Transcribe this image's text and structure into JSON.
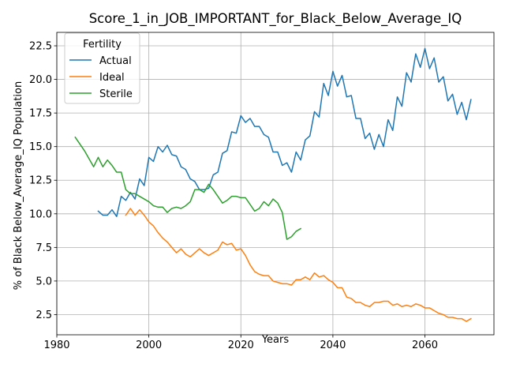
{
  "chart_data": {
    "type": "line",
    "title": "Score_1_in_JOB_IMPORTANT_for_Black_Below_Average_IQ",
    "xlabel": "Years",
    "ylabel": "% of Black Below_Average_IQ Population",
    "xlim": [
      1980,
      2075
    ],
    "ylim": [
      1,
      23.5
    ],
    "xticks": [
      1980,
      2000,
      2020,
      2040,
      2060
    ],
    "xtick_labels": [
      "1980",
      "2000",
      "2020",
      "2040",
      "2060"
    ],
    "yticks": [
      2.5,
      5.0,
      7.5,
      10.0,
      12.5,
      15.0,
      17.5,
      20.0,
      22.5
    ],
    "ytick_labels": [
      "2.5",
      "5.0",
      "7.5",
      "10.0",
      "12.5",
      "15.0",
      "17.5",
      "20.0",
      "22.5"
    ],
    "grid": true,
    "legend": {
      "title": "Fertility",
      "position": "top-left"
    },
    "series": [
      {
        "name": "Actual",
        "color": "#1f77b4",
        "x": [
          1989,
          1990,
          1991,
          1992,
          1993,
          1994,
          1995,
          1996,
          1997,
          1998,
          1999,
          2000,
          2001,
          2002,
          2003,
          2004,
          2005,
          2006,
          2007,
          2008,
          2009,
          2010,
          2011,
          2012,
          2013,
          2014,
          2015,
          2016,
          2017,
          2018,
          2019,
          2020,
          2021,
          2022,
          2023,
          2024,
          2025,
          2026,
          2027,
          2028,
          2029,
          2030,
          2031,
          2032,
          2033,
          2034,
          2035,
          2036,
          2037,
          2038,
          2039,
          2040,
          2041,
          2042,
          2043,
          2044,
          2045,
          2046,
          2047,
          2048,
          2049,
          2050,
          2051,
          2052,
          2053,
          2054,
          2055,
          2056,
          2057,
          2058,
          2059,
          2060,
          2061,
          2062,
          2063,
          2064,
          2065,
          2066,
          2067,
          2068,
          2069,
          2070
        ],
        "y": [
          10.2,
          9.9,
          9.9,
          10.3,
          9.8,
          11.3,
          11.0,
          11.6,
          11.1,
          12.6,
          12.1,
          14.2,
          13.9,
          15.0,
          14.6,
          15.1,
          14.4,
          14.3,
          13.5,
          13.3,
          12.6,
          12.4,
          11.8,
          11.8,
          11.9,
          12.9,
          13.1,
          14.5,
          14.7,
          16.1,
          16.0,
          17.3,
          16.8,
          17.1,
          16.5,
          16.5,
          15.9,
          15.7,
          14.6,
          14.6,
          13.6,
          13.8,
          13.1,
          14.6,
          14.0,
          15.5,
          15.8,
          17.6,
          17.2,
          19.7,
          18.8,
          20.6,
          19.5,
          20.3,
          18.7,
          18.8,
          17.1,
          17.1,
          15.6,
          16.0,
          14.8,
          15.9,
          15.0,
          17.0,
          16.2,
          18.7,
          18.0,
          20.5,
          19.8,
          21.9,
          20.9,
          22.3,
          20.8,
          21.6,
          19.8,
          20.2,
          18.4,
          18.9,
          17.4,
          18.3,
          17.0,
          18.5
        ]
      },
      {
        "name": "Ideal",
        "color": "#ff7f0e",
        "x": [
          1995,
          1996,
          1997,
          1998,
          1999,
          2000,
          2001,
          2002,
          2003,
          2004,
          2005,
          2006,
          2007,
          2008,
          2009,
          2010,
          2011,
          2012,
          2013,
          2014,
          2015,
          2016,
          2017,
          2018,
          2019,
          2020,
          2021,
          2022,
          2023,
          2024,
          2025,
          2026,
          2027,
          2028,
          2029,
          2030,
          2031,
          2032,
          2033,
          2034,
          2035,
          2036,
          2037,
          2038,
          2039,
          2040,
          2041,
          2042,
          2043,
          2044,
          2045,
          2046,
          2047,
          2048,
          2049,
          2050,
          2051,
          2052,
          2053,
          2054,
          2055,
          2056,
          2057,
          2058,
          2059,
          2060,
          2061,
          2062,
          2063,
          2064,
          2065,
          2066,
          2067,
          2068,
          2069,
          2070
        ],
        "y": [
          9.9,
          10.4,
          9.9,
          10.3,
          9.9,
          9.4,
          9.1,
          8.6,
          8.2,
          7.9,
          7.5,
          7.1,
          7.4,
          7.0,
          6.8,
          7.1,
          7.4,
          7.1,
          6.9,
          7.1,
          7.3,
          7.9,
          7.7,
          7.8,
          7.3,
          7.4,
          6.9,
          6.2,
          5.7,
          5.5,
          5.4,
          5.4,
          5.0,
          4.9,
          4.8,
          4.8,
          4.7,
          5.1,
          5.1,
          5.3,
          5.1,
          5.6,
          5.3,
          5.4,
          5.1,
          4.9,
          4.5,
          4.5,
          3.8,
          3.7,
          3.4,
          3.4,
          3.2,
          3.1,
          3.4,
          3.4,
          3.5,
          3.5,
          3.2,
          3.3,
          3.1,
          3.2,
          3.1,
          3.3,
          3.2,
          3.0,
          3.0,
          2.8,
          2.6,
          2.5,
          2.3,
          2.3,
          2.2,
          2.2,
          2.0,
          2.2
        ]
      },
      {
        "name": "Sterile",
        "color": "#2ca02c",
        "x": [
          1984,
          1985,
          1986,
          1987,
          1988,
          1989,
          1990,
          1991,
          1992,
          1993,
          1994,
          1995,
          1996,
          1997,
          1998,
          1999,
          2000,
          2001,
          2002,
          2003,
          2004,
          2005,
          2006,
          2007,
          2008,
          2009,
          2010,
          2011,
          2012,
          2013,
          2014,
          2015,
          2016,
          2017,
          2018,
          2019,
          2020,
          2021,
          2022,
          2023,
          2024,
          2025,
          2026,
          2027,
          2028,
          2029,
          2030,
          2031,
          2032,
          2033
        ],
        "y": [
          15.7,
          15.2,
          14.7,
          14.1,
          13.5,
          14.2,
          13.5,
          14.0,
          13.6,
          13.1,
          13.1,
          11.8,
          11.5,
          11.5,
          11.3,
          11.1,
          10.9,
          10.6,
          10.5,
          10.5,
          10.1,
          10.4,
          10.5,
          10.4,
          10.6,
          10.9,
          11.8,
          11.8,
          11.6,
          12.2,
          11.8,
          11.3,
          10.8,
          11.0,
          11.3,
          11.3,
          11.2,
          11.2,
          10.7,
          10.2,
          10.4,
          10.9,
          10.6,
          11.1,
          10.8,
          10.1,
          8.1,
          8.3,
          8.7,
          8.9
        ]
      }
    ]
  }
}
